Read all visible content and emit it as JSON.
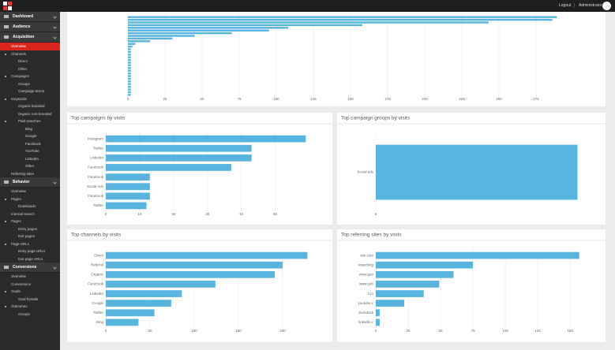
{
  "topbar": {
    "logout": "Logout",
    "user": "Administrator"
  },
  "sidebar": {
    "sections": [
      {
        "title": "Dashboard",
        "items": []
      },
      {
        "title": "Audience",
        "items": []
      },
      {
        "title": "Acquisition",
        "items": [
          {
            "label": "Overview",
            "active": true
          },
          {
            "label": "Channels",
            "items": [
              {
                "label": "Direct"
              },
              {
                "label": "Other"
              }
            ]
          },
          {
            "label": "Campaigns",
            "items": [
              {
                "label": "Groups"
              },
              {
                "label": "Campaign terms"
              }
            ]
          },
          {
            "label": "Keywords",
            "items": [
              {
                "label": "Organic branded"
              },
              {
                "label": "Organic non-branded"
              },
              {
                "label": "Paid searches",
                "items": [
                  {
                    "label": "Bing"
                  },
                  {
                    "label": "Google"
                  },
                  {
                    "label": "Facebook"
                  },
                  {
                    "label": "YouTube"
                  },
                  {
                    "label": "LinkedIn"
                  },
                  {
                    "label": "Other"
                  }
                ]
              }
            ]
          },
          {
            "label": "Referring sites"
          }
        ]
      },
      {
        "title": "Behavior",
        "items": [
          {
            "label": "Overview"
          },
          {
            "label": "Pages",
            "items": [
              {
                "label": "Downloads"
              }
            ]
          },
          {
            "label": "Internal search"
          },
          {
            "label": "Pages",
            "items": [
              {
                "label": "Entry pages"
              },
              {
                "label": "Exit pages"
              }
            ]
          },
          {
            "label": "Page URLs",
            "items": [
              {
                "label": "Entry page URLs"
              },
              {
                "label": "Exit page URLs"
              }
            ]
          }
        ]
      },
      {
        "title": "Conversions",
        "items": [
          {
            "label": "Overview"
          },
          {
            "label": "Conversions"
          },
          {
            "label": "Goals",
            "items": [
              {
                "label": "Goal funnels"
              }
            ]
          },
          {
            "label": "Outcomes",
            "items": [
              {
                "label": "Groups"
              }
            ]
          }
        ]
      }
    ]
  },
  "chart_data": [
    {
      "type": "bar",
      "orientation": "horizontal",
      "color": "#56b4de",
      "grid": true,
      "categories": [
        null,
        null,
        null,
        null,
        null,
        null,
        null,
        null,
        null,
        null,
        null,
        null,
        null,
        null,
        null,
        null,
        null,
        null,
        null,
        null,
        null,
        null,
        null,
        null,
        null,
        null,
        null,
        null,
        null,
        null
      ],
      "values": [
        289,
        286,
        243,
        158,
        108,
        95,
        70,
        45,
        30,
        15,
        5,
        3,
        2,
        2,
        2,
        2,
        2,
        2,
        2,
        2,
        2,
        2,
        2,
        2,
        2,
        2,
        2,
        2,
        2,
        2
      ],
      "xlim": [
        0,
        300
      ],
      "xticks": [
        0,
        25,
        50,
        75,
        100,
        125,
        150,
        175,
        200,
        225,
        250,
        275
      ]
    },
    {
      "type": "bar",
      "orientation": "horizontal",
      "color": "#56b4de",
      "grid": true,
      "title": "Top campaigns by visits",
      "categories": [
        "Instagram",
        "Twitter",
        "LinkedIn",
        "Facebook",
        "Facebook",
        "Social Ads",
        "Facebook",
        "Twitter"
      ],
      "values": [
        59,
        43,
        43,
        37,
        13,
        13,
        13,
        12
      ],
      "xlim": [
        0,
        65
      ],
      "xticks": [
        0,
        10,
        20,
        30,
        40,
        50
      ]
    },
    {
      "type": "bar",
      "orientation": "horizontal",
      "color": "#56b4de",
      "grid": true,
      "title": "Top campaign groups by visits",
      "categories": [
        "Social ads"
      ],
      "values": [
        1
      ],
      "xlim": [
        0,
        1.1
      ],
      "xticks": [
        0
      ]
    },
    {
      "type": "bar",
      "orientation": "horizontal",
      "color": "#56b4de",
      "grid": true,
      "title": "Top channels by visits",
      "categories": [
        "Direct",
        "Referral",
        "Organic",
        "Facebook",
        "LinkedIn",
        "Google",
        "Twitter",
        "Bing"
      ],
      "values": [
        228,
        200,
        191,
        124,
        86,
        74,
        55,
        37
      ],
      "xlim": [
        0,
        250
      ],
      "xticks": [
        0,
        50,
        100,
        150,
        200
      ]
    },
    {
      "type": "bar",
      "orientation": "horizontal",
      "color": "#56b4de",
      "grid": true,
      "title": "Top referring sites by visits",
      "categories": [
        "site.com",
        "www.bing",
        "www.goo",
        "www.yah",
        "t.co",
        "youtube.c",
        "duckduck",
        "linkedin.c"
      ],
      "values": [
        157,
        75,
        60,
        49,
        37,
        22,
        3,
        3
      ],
      "xlim": [
        0,
        170
      ],
      "xticks": [
        0,
        25,
        50,
        75,
        100,
        125,
        150
      ]
    }
  ]
}
